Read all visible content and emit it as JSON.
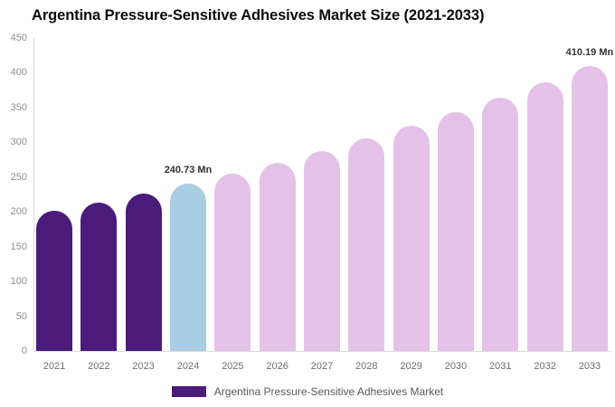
{
  "title": "Argentina Pressure-Sensitive Adhesives Market Size (2021-2033)",
  "legend": {
    "label": "Argentina Pressure-Sensitive Adhesives Market",
    "swatch_color": "#4B1B7C"
  },
  "colors": {
    "historical_bar": "#4B1B7C",
    "current_year_bar": "#A9CDE2",
    "forecast_bar": "#E4C2E7",
    "axis_line": "#D9D9D9",
    "y_tick_text": "#8E8E8E",
    "x_label_text": "#6E6E6E",
    "annotation_text": "#333333",
    "title_text": "#0B0B0B"
  },
  "chart_data": {
    "type": "bar",
    "title": "Argentina Pressure-Sensitive Adhesives Market Size (2021-2033)",
    "unit": "Mn",
    "categories": [
      "2021",
      "2022",
      "2023",
      "2024",
      "2025",
      "2026",
      "2027",
      "2028",
      "2029",
      "2030",
      "2031",
      "2032",
      "2033"
    ],
    "values": [
      201.6,
      213.9,
      226.9,
      240.73,
      255.4,
      271.1,
      287.6,
      305.1,
      323.7,
      343.4,
      364.3,
      386.5,
      410.19
    ],
    "bar_colors": [
      "#4B1B7C",
      "#4B1B7C",
      "#4B1B7C",
      "#A9CDE2",
      "#E4C2E7",
      "#E4C2E7",
      "#E4C2E7",
      "#E4C2E7",
      "#E4C2E7",
      "#E4C2E7",
      "#E4C2E7",
      "#E4C2E7",
      "#E4C2E7"
    ],
    "annotations": [
      {
        "category": "2024",
        "label": "240.73 Mn"
      },
      {
        "category": "2033",
        "label": "410.19 Mn"
      }
    ],
    "xlabel": "",
    "ylabel": "",
    "ylim": [
      0,
      450
    ],
    "y_ticks": [
      0,
      50,
      100,
      150,
      200,
      250,
      300,
      350,
      400,
      450
    ],
    "grid": false,
    "legend_position": "bottom",
    "legend_entries": [
      "Argentina Pressure-Sensitive Adhesives Market"
    ]
  }
}
